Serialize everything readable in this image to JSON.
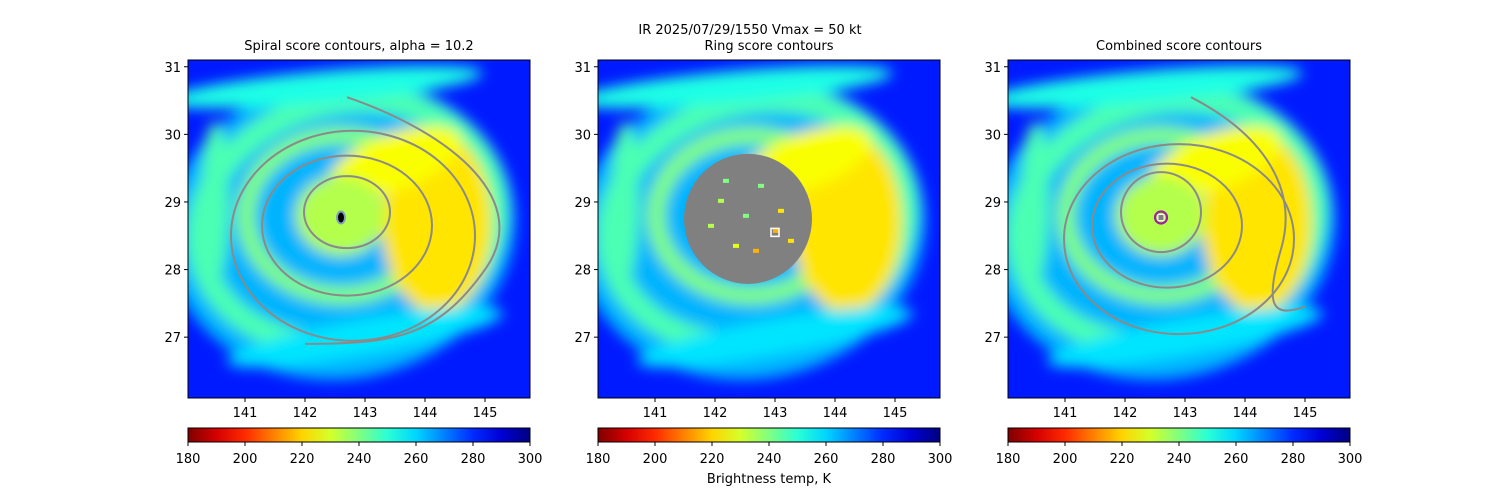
{
  "figure": {
    "suptitle_line1": "IR  2025/07/29/1550    Vmax = 50 kt",
    "colorbar_label": "Brightness temp, K"
  },
  "panels": [
    {
      "title": "Spiral score contours, alpha = 10.2"
    },
    {
      "title": "Ring score contours"
    },
    {
      "title": "Combined score contours"
    }
  ],
  "chart_data": [
    {
      "type": "heatmap",
      "title": "Spiral score contours, alpha = 10.2",
      "xlim": [
        140.05,
        145.75
      ],
      "ylim": [
        26.1,
        31.1
      ],
      "xticks": [
        141,
        142,
        143,
        144,
        145
      ],
      "yticks": [
        27,
        28,
        29,
        30,
        31
      ],
      "colorbar": {
        "cmap": "jet_r",
        "vmin": 180,
        "vmax": 300,
        "ticks": [
          180,
          200,
          220,
          240,
          260,
          280,
          300
        ]
      },
      "overlay": "gray spiral-score contour lines",
      "marker": {
        "x": 142.6,
        "y": 28.77,
        "shape": "small circle",
        "color": "#7fa0c0"
      }
    },
    {
      "type": "heatmap",
      "title": "Ring score contours",
      "xlim": [
        140.05,
        145.75
      ],
      "ylim": [
        26.1,
        31.1
      ],
      "xticks": [
        141,
        142,
        143,
        144,
        145
      ],
      "yticks": [
        27,
        28,
        29,
        30,
        31
      ],
      "colorbar": {
        "cmap": "jet_r",
        "vmin": 180,
        "vmax": 300,
        "ticks": [
          180,
          200,
          220,
          240,
          260,
          280,
          300
        ]
      },
      "overlay": "gray filled ring-score disc",
      "disc_center": [
        142.55,
        28.75
      ],
      "marker": {
        "x": 143.0,
        "y": 28.55,
        "shape": "square",
        "color": "#ffffff"
      }
    },
    {
      "type": "heatmap",
      "title": "Combined score contours",
      "xlim": [
        140.05,
        145.75
      ],
      "ylim": [
        26.1,
        31.1
      ],
      "xticks": [
        141,
        142,
        143,
        144,
        145
      ],
      "yticks": [
        27,
        28,
        29,
        30,
        31
      ],
      "colorbar": {
        "cmap": "jet_r",
        "vmin": 180,
        "vmax": 300,
        "ticks": [
          180,
          200,
          220,
          240,
          260,
          280,
          300
        ]
      },
      "overlay": "gray combined-score contour lines",
      "marker": {
        "x": 142.6,
        "y": 28.77,
        "shape": "circle+square",
        "color": "#a020a0"
      }
    }
  ]
}
